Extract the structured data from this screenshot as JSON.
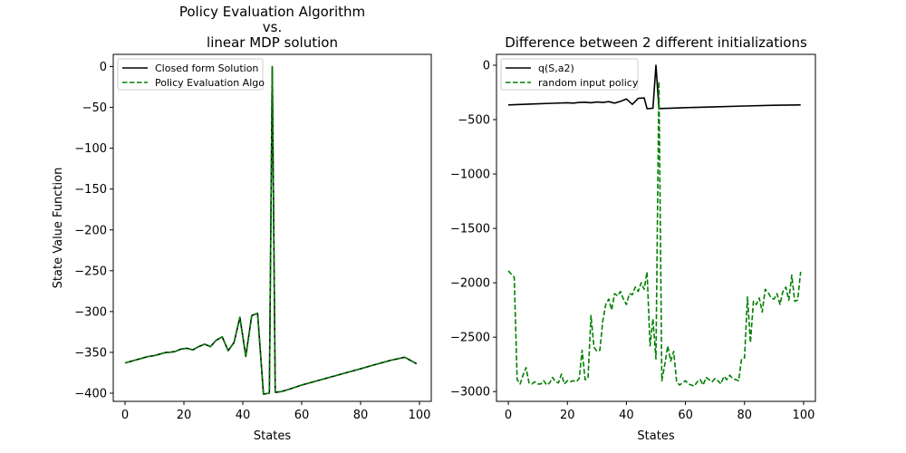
{
  "chart_data": [
    {
      "type": "line",
      "title_lines": [
        "Policy Evaluation Algorithm",
        "vs.",
        "linear MDP solution"
      ],
      "xlabel": "States",
      "ylabel": "State Value Function",
      "xlim": [
        -4,
        104
      ],
      "ylim": [
        -410,
        15
      ],
      "xticks": [
        0,
        20,
        40,
        60,
        80,
        100
      ],
      "xtick_labels": [
        "0",
        "20",
        "40",
        "60",
        "80",
        "100"
      ],
      "yticks": [
        0,
        -50,
        -100,
        -150,
        -200,
        -250,
        -300,
        -350,
        -400
      ],
      "ytick_labels": [
        "0",
        "−50",
        "−100",
        "−150",
        "−200",
        "−250",
        "−300",
        "−350",
        "−400"
      ],
      "legend_position": "upper-left",
      "series": [
        {
          "name": " Closed form Solution",
          "color": "#000000",
          "style": "solid",
          "x": [
            0,
            2,
            4,
            6,
            8,
            10,
            12,
            14,
            15,
            17,
            19,
            21,
            23,
            25,
            27,
            29,
            31,
            33,
            35,
            37,
            39,
            41,
            43,
            45,
            47,
            49,
            50,
            51,
            53,
            55,
            60,
            65,
            70,
            75,
            80,
            85,
            90,
            95,
            99
          ],
          "y": [
            -363,
            -361,
            -359,
            -357,
            -355,
            -354,
            -352,
            -350,
            -350,
            -349,
            -346,
            -345,
            -347,
            -343,
            -340,
            -343,
            -335,
            -331,
            -348,
            -338,
            -307,
            -355,
            -305,
            -302,
            -401,
            -400,
            0,
            -399,
            -398,
            -396,
            -390,
            -385,
            -380,
            -375,
            -370,
            -365,
            -360,
            -356,
            -364
          ]
        },
        {
          "name": "Policy Evaluation Algo",
          "color": "#008000",
          "style": "dashed",
          "x": [
            0,
            2,
            4,
            6,
            8,
            10,
            12,
            14,
            15,
            17,
            19,
            21,
            23,
            25,
            27,
            29,
            31,
            33,
            35,
            37,
            39,
            41,
            43,
            45,
            47,
            49,
            50,
            51,
            53,
            55,
            60,
            65,
            70,
            75,
            80,
            85,
            90,
            95,
            99
          ],
          "y": [
            -363,
            -361,
            -359,
            -357,
            -355,
            -354,
            -352,
            -350,
            -350,
            -349,
            -346,
            -345,
            -347,
            -343,
            -340,
            -343,
            -335,
            -331,
            -348,
            -338,
            -307,
            -355,
            -305,
            -302,
            -401,
            -400,
            0,
            -399,
            -398,
            -396,
            -390,
            -385,
            -380,
            -375,
            -370,
            -365,
            -360,
            -356,
            -364
          ]
        }
      ]
    },
    {
      "type": "line",
      "title_lines": [
        "Difference between 2 different initializations"
      ],
      "xlabel": "States",
      "ylabel": "",
      "xlim": [
        -4,
        104
      ],
      "ylim": [
        -3090,
        100
      ],
      "xticks": [
        0,
        20,
        40,
        60,
        80,
        100
      ],
      "xtick_labels": [
        "0",
        "20",
        "40",
        "60",
        "80",
        "100"
      ],
      "yticks": [
        0,
        -500,
        -1000,
        -1500,
        -2000,
        -2500,
        -3000
      ],
      "ytick_labels": [
        "0",
        "−500",
        "−1000",
        "−1500",
        "−2000",
        "−2500",
        "−3000"
      ],
      "legend_position": "upper-left",
      "series": [
        {
          "name": "q(S,a2)",
          "color": "#000000",
          "style": "solid",
          "x": [
            0,
            5,
            10,
            15,
            20,
            22,
            24,
            26,
            28,
            30,
            32,
            34,
            36,
            38,
            40,
            42,
            44,
            46,
            47,
            49,
            50,
            51,
            55,
            60,
            70,
            80,
            90,
            99
          ],
          "y": [
            -365,
            -360,
            -355,
            -350,
            -345,
            -348,
            -342,
            -340,
            -345,
            -338,
            -342,
            -335,
            -348,
            -332,
            -310,
            -360,
            -305,
            -300,
            -400,
            -395,
            0,
            -398,
            -395,
            -390,
            -382,
            -375,
            -368,
            -365
          ]
        },
        {
          "name": "random input policy",
          "color": "#008000",
          "style": "dashed",
          "x": [
            0,
            1,
            2,
            3,
            4,
            5,
            6,
            7,
            8,
            9,
            10,
            11,
            12,
            13,
            14,
            15,
            16,
            17,
            18,
            19,
            20,
            21,
            22,
            23,
            24,
            25,
            26,
            27,
            28,
            29,
            30,
            31,
            32,
            33,
            34,
            35,
            36,
            37,
            38,
            39,
            40,
            41,
            42,
            43,
            44,
            45,
            46,
            47,
            48,
            49,
            50,
            51,
            52,
            53,
            54,
            55,
            56,
            57,
            58,
            59,
            60,
            61,
            62,
            63,
            64,
            65,
            66,
            67,
            68,
            69,
            70,
            71,
            72,
            73,
            74,
            75,
            76,
            77,
            78,
            79,
            80,
            81,
            82,
            83,
            84,
            85,
            86,
            87,
            88,
            89,
            90,
            91,
            92,
            93,
            94,
            95,
            96,
            97,
            98,
            99
          ],
          "y": [
            -1890,
            -1920,
            -1950,
            -2890,
            -2930,
            -2850,
            -2780,
            -2920,
            -2930,
            -2910,
            -2930,
            -2930,
            -2900,
            -2940,
            -2920,
            -2870,
            -2910,
            -2920,
            -2840,
            -2930,
            -2900,
            -2910,
            -2900,
            -2910,
            -2880,
            -2620,
            -2890,
            -2880,
            -2300,
            -2590,
            -2630,
            -2620,
            -2350,
            -2200,
            -2150,
            -2250,
            -2100,
            -2120,
            -2080,
            -2150,
            -2200,
            -2100,
            -2110,
            -2040,
            -2080,
            -2000,
            -2060,
            -1900,
            -2580,
            -2330,
            -2700,
            -150,
            -2900,
            -2750,
            -2580,
            -2720,
            -2630,
            -2910,
            -2940,
            -2920,
            -2900,
            -2930,
            -2940,
            -2950,
            -2910,
            -2890,
            -2940,
            -2870,
            -2890,
            -2910,
            -2880,
            -2900,
            -2930,
            -2860,
            -2890,
            -2850,
            -2880,
            -2890,
            -2900,
            -2700,
            -2690,
            -2130,
            -2550,
            -2170,
            -2200,
            -2140,
            -2270,
            -2060,
            -2090,
            -2140,
            -2150,
            -2100,
            -2200,
            -2080,
            -2040,
            -2160,
            -1930,
            -2170,
            -2160,
            -1900
          ]
        }
      ]
    }
  ]
}
